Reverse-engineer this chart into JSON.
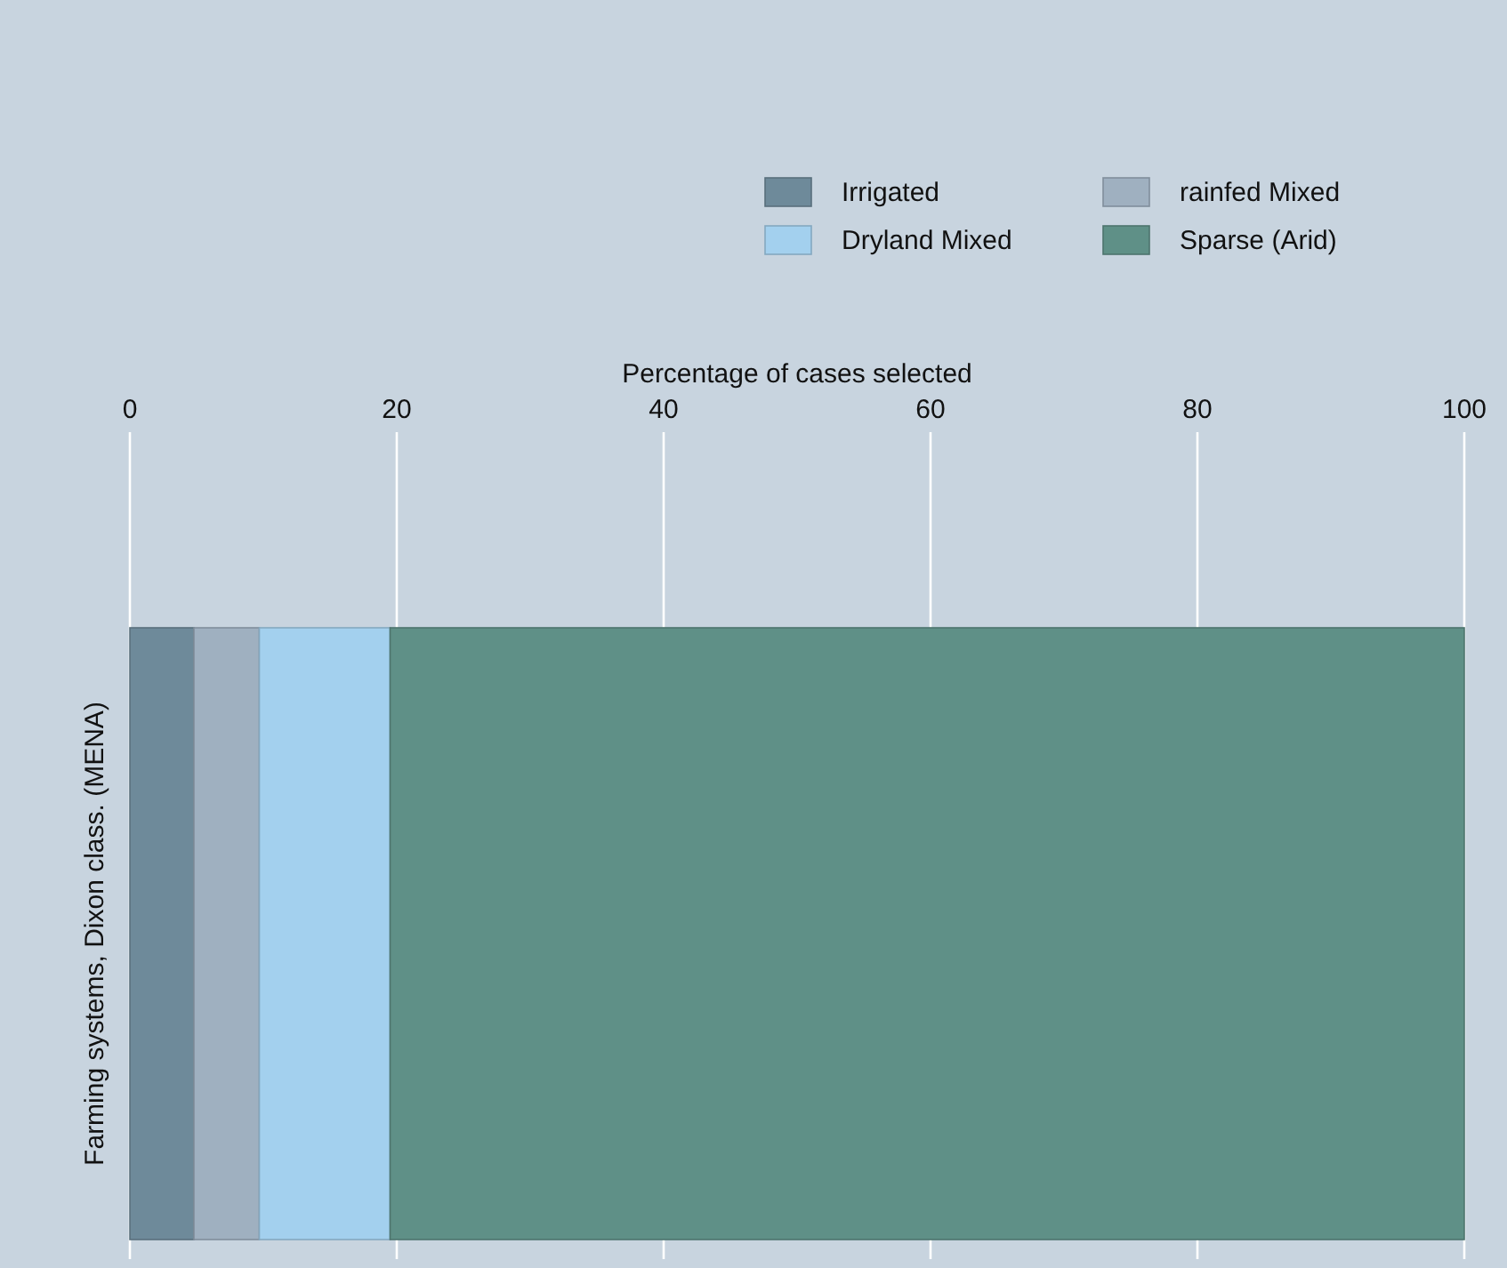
{
  "chart_data": {
    "type": "bar",
    "orientation": "horizontal",
    "stacked": true,
    "xlabel": "Percentage of cases selected",
    "categories": [
      "Farming systems, Dixon class. (MENA)"
    ],
    "series": [
      {
        "name": "Irrigated",
        "color": "#6e8a9a",
        "values": [
          4.8
        ]
      },
      {
        "name": "rainfed Mixed",
        "color": "#9fb0c0",
        "values": [
          4.9
        ]
      },
      {
        "name": "Dryland Mixed",
        "color": "#a3d0ee",
        "values": [
          9.8
        ]
      },
      {
        "name": "Sparse (Arid)",
        "color": "#5f9087",
        "values": [
          80.5
        ]
      }
    ],
    "xlim": [
      0,
      100
    ],
    "xticks": [
      0,
      20,
      40,
      60,
      80,
      100
    ],
    "grid": "x",
    "legend": "top right"
  }
}
